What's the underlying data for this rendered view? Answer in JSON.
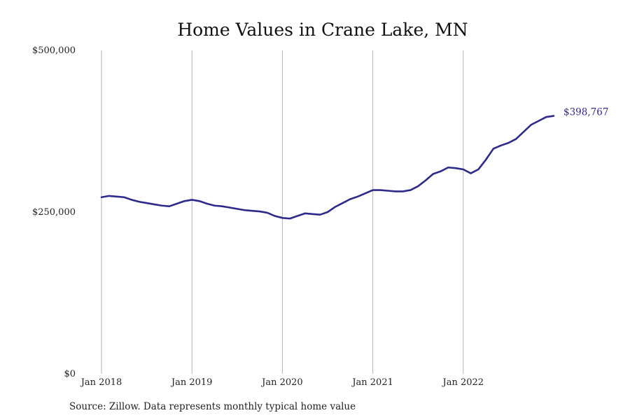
{
  "chart_data": {
    "type": "line",
    "title": "Home Values in Crane Lake, MN",
    "source": "Source: Zillow. Data represents monthly typical home value",
    "x_start": "2018-01",
    "x": [
      "2018-01",
      "2018-02",
      "2018-03",
      "2018-04",
      "2018-05",
      "2018-06",
      "2018-07",
      "2018-08",
      "2018-09",
      "2018-10",
      "2018-11",
      "2018-12",
      "2019-01",
      "2019-02",
      "2019-03",
      "2019-04",
      "2019-05",
      "2019-06",
      "2019-07",
      "2019-08",
      "2019-09",
      "2019-10",
      "2019-11",
      "2019-12",
      "2020-01",
      "2020-02",
      "2020-03",
      "2020-04",
      "2020-05",
      "2020-06",
      "2020-07",
      "2020-08",
      "2020-09",
      "2020-10",
      "2020-11",
      "2020-12",
      "2021-01",
      "2021-02",
      "2021-03",
      "2021-04",
      "2021-05",
      "2021-06",
      "2021-07",
      "2021-08",
      "2021-09",
      "2021-10",
      "2021-11",
      "2021-12",
      "2022-01",
      "2022-02",
      "2022-03",
      "2022-04",
      "2022-05",
      "2022-06",
      "2022-07",
      "2022-08",
      "2022-09",
      "2022-10",
      "2022-11",
      "2022-12",
      "2023-01"
    ],
    "values": [
      273000,
      275000,
      274000,
      273000,
      269000,
      266000,
      264000,
      262000,
      260000,
      259000,
      263000,
      267000,
      269000,
      267000,
      263000,
      260000,
      259000,
      257000,
      255000,
      253000,
      252000,
      251000,
      249000,
      244000,
      241000,
      240000,
      244000,
      248000,
      247000,
      246000,
      250000,
      258000,
      264000,
      270000,
      274000,
      279000,
      284000,
      284000,
      283000,
      282000,
      282000,
      284000,
      290000,
      299000,
      309000,
      313000,
      319000,
      318000,
      316000,
      310000,
      316000,
      331000,
      348000,
      353000,
      357000,
      363000,
      374000,
      385000,
      391000,
      397000,
      398767
    ],
    "series_color": "#2e2a8a",
    "end_label": "$398,767",
    "y_ticks": [
      {
        "value": 0,
        "label": "$0"
      },
      {
        "value": 250000,
        "label": "$250,000"
      },
      {
        "value": 500000,
        "label": "$500,000"
      }
    ],
    "x_ticks": [
      {
        "value": "2018-01",
        "label": "Jan 2018"
      },
      {
        "value": "2019-01",
        "label": "Jan 2019"
      },
      {
        "value": "2020-01",
        "label": "Jan 2020"
      },
      {
        "value": "2021-01",
        "label": "Jan 2021"
      },
      {
        "value": "2022-01",
        "label": "Jan 2022"
      }
    ],
    "ylim": [
      0,
      500000
    ],
    "xlim": [
      "2018-01",
      "2023-01"
    ],
    "grid": "vertical"
  }
}
